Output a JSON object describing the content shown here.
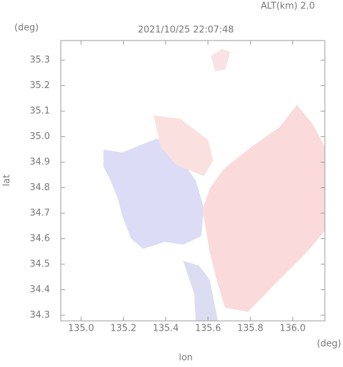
{
  "chart_data": {
    "type": "heatmap",
    "title": "2021/10/25 22:07:48",
    "annotation": "ALT(km) 2.0",
    "xlabel": "lon",
    "ylabel": "lat",
    "x_unit": "(deg)",
    "y_unit": "(deg)",
    "xlim": [
      134.904,
      136.152
    ],
    "ylim": [
      34.278,
      35.377
    ],
    "xticks": [
      {
        "value": 135,
        "label": "135.0"
      },
      135.2,
      135.4,
      135.6,
      135.8,
      {
        "value": 136,
        "label": "136.0"
      }
    ],
    "yticks": [
      34.3,
      34.4,
      34.5,
      34.6,
      34.7,
      34.8,
      34.9,
      {
        "value": 35,
        "label": "35.0"
      },
      35.1,
      35.2,
      35.3
    ]
  }
}
